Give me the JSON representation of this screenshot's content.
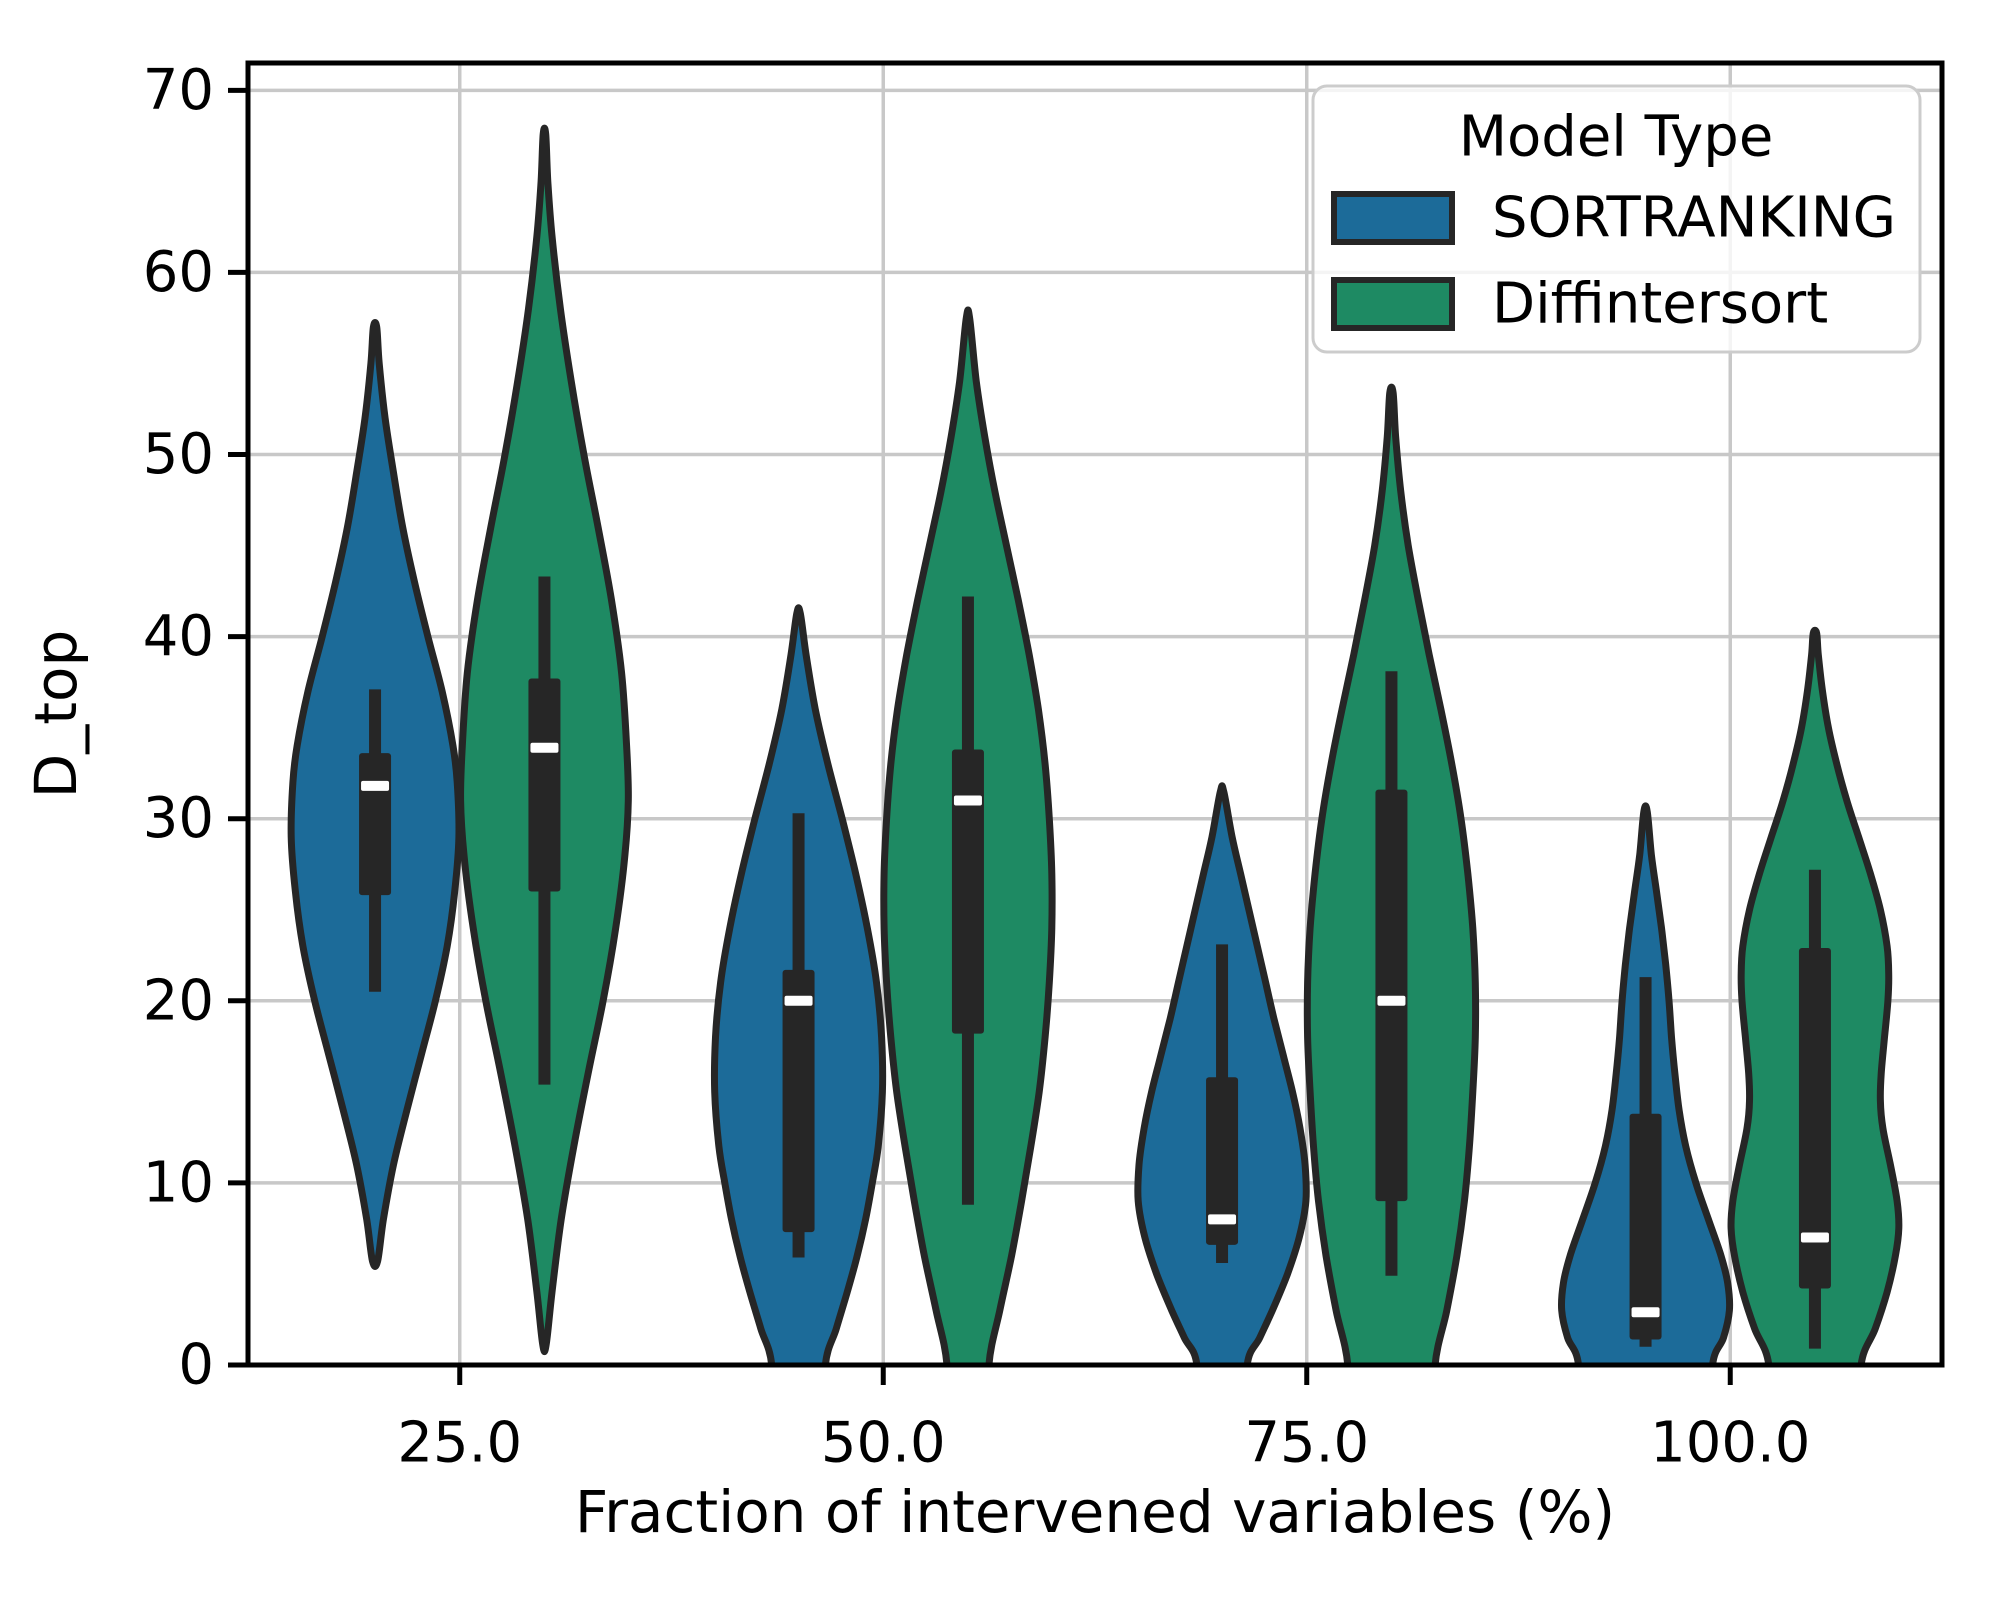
{
  "figure": {
    "background": "#ffffff"
  },
  "chart_data": {
    "type": "violin",
    "title": "",
    "xlabel": "Fraction of intervened variables (%)",
    "ylabel": "D_top",
    "categories": [
      "25.0",
      "50.0",
      "75.0",
      "100.0"
    ],
    "yticks": [
      0,
      10,
      20,
      30,
      40,
      50,
      60,
      70
    ],
    "ylim": [
      0,
      71.5
    ],
    "grid": true,
    "legend": {
      "title": "Model Type",
      "position": "upper right",
      "entries": [
        "SORTRANKING",
        "Diffintersort"
      ]
    },
    "style_colors": {
      "grid": "#c8c8c8",
      "spine": "#000000",
      "inner_dark": "#262626",
      "median": "#ffffff",
      "legend_border": "#cccccc",
      "text": "#000000"
    },
    "series": [
      {
        "name": "SORTRANKING",
        "color": "#1c6b99",
        "violins": [
          {
            "category": "25.0",
            "whisker_low": 20.5,
            "q1": 25.8,
            "median": 31.8,
            "q3": 33.6,
            "whisker_high": 37.1,
            "kde_min": 5.7,
            "kde_max": 57.0,
            "clipped_at_zero": false,
            "profile": [
              [
                5.7,
                0.03
              ],
              [
                8,
                0.1
              ],
              [
                11,
                0.22
              ],
              [
                14,
                0.38
              ],
              [
                17,
                0.55
              ],
              [
                20,
                0.72
              ],
              [
                23,
                0.86
              ],
              [
                26,
                0.95
              ],
              [
                29,
                1.0
              ],
              [
                32,
                0.98
              ],
              [
                34,
                0.93
              ],
              [
                37,
                0.8
              ],
              [
                40,
                0.63
              ],
              [
                43,
                0.47
              ],
              [
                46,
                0.33
              ],
              [
                49,
                0.22
              ],
              [
                52,
                0.12
              ],
              [
                55,
                0.05
              ],
              [
                57,
                0.02
              ]
            ]
          },
          {
            "category": "50.0",
            "whisker_low": 5.9,
            "q1": 7.3,
            "median": 20.0,
            "q3": 21.7,
            "whisker_high": 30.3,
            "kde_min": 0.0,
            "kde_max": 41.3,
            "clipped_at_zero": true,
            "profile": [
              [
                0,
                0.32
              ],
              [
                2,
                0.45
              ],
              [
                4,
                0.58
              ],
              [
                6,
                0.7
              ],
              [
                8,
                0.8
              ],
              [
                10,
                0.88
              ],
              [
                12,
                0.95
              ],
              [
                15,
                1.0
              ],
              [
                18,
                0.99
              ],
              [
                21,
                0.93
              ],
              [
                24,
                0.82
              ],
              [
                27,
                0.68
              ],
              [
                30,
                0.52
              ],
              [
                33,
                0.35
              ],
              [
                36,
                0.2
              ],
              [
                39,
                0.09
              ],
              [
                41.3,
                0.02
              ]
            ]
          },
          {
            "category": "75.0",
            "whisker_low": 5.6,
            "q1": 6.6,
            "median": 8.0,
            "q3": 15.8,
            "whisker_high": 23.1,
            "kde_min": 0.0,
            "kde_max": 31.5,
            "clipped_at_zero": true,
            "profile": [
              [
                0,
                0.3
              ],
              [
                1.5,
                0.45
              ],
              [
                3,
                0.6
              ],
              [
                5,
                0.78
              ],
              [
                7,
                0.92
              ],
              [
                9,
                1.0
              ],
              [
                11,
                0.99
              ],
              [
                13,
                0.93
              ],
              [
                15,
                0.84
              ],
              [
                17,
                0.73
              ],
              [
                19,
                0.62
              ],
              [
                21,
                0.52
              ],
              [
                23,
                0.42
              ],
              [
                25,
                0.32
              ],
              [
                27,
                0.22
              ],
              [
                29,
                0.12
              ],
              [
                31.5,
                0.02
              ]
            ]
          },
          {
            "category": "100.0",
            "whisker_low": 1.0,
            "q1": 1.4,
            "median": 2.9,
            "q3": 13.8,
            "whisker_high": 21.3,
            "kde_min": 0.0,
            "kde_max": 30.4,
            "clipped_at_zero": true,
            "profile": [
              [
                0,
                0.8
              ],
              [
                1.5,
                0.93
              ],
              [
                3,
                1.0
              ],
              [
                4.5,
                0.98
              ],
              [
                6,
                0.9
              ],
              [
                8,
                0.75
              ],
              [
                10,
                0.6
              ],
              [
                12,
                0.48
              ],
              [
                14,
                0.4
              ],
              [
                16,
                0.35
              ],
              [
                18,
                0.31
              ],
              [
                20,
                0.28
              ],
              [
                22,
                0.24
              ],
              [
                24,
                0.19
              ],
              [
                26,
                0.13
              ],
              [
                28,
                0.07
              ],
              [
                30.4,
                0.02
              ]
            ]
          }
        ]
      },
      {
        "name": "Diffintersort",
        "color": "#1e8a63",
        "violins": [
          {
            "category": "25.0",
            "whisker_low": 15.4,
            "q1": 26.0,
            "median": 33.9,
            "q3": 37.7,
            "whisker_high": 43.3,
            "kde_min": 1.1,
            "kde_max": 67.6,
            "clipped_at_zero": false,
            "profile": [
              [
                1.1,
                0.02
              ],
              [
                4,
                0.09
              ],
              [
                8,
                0.2
              ],
              [
                12,
                0.35
              ],
              [
                16,
                0.52
              ],
              [
                20,
                0.7
              ],
              [
                24,
                0.85
              ],
              [
                28,
                0.96
              ],
              [
                31,
                1.0
              ],
              [
                34,
                0.98
              ],
              [
                38,
                0.92
              ],
              [
                42,
                0.8
              ],
              [
                46,
                0.64
              ],
              [
                50,
                0.47
              ],
              [
                54,
                0.32
              ],
              [
                58,
                0.19
              ],
              [
                62,
                0.09
              ],
              [
                65,
                0.04
              ],
              [
                67.6,
                0.015
              ]
            ]
          },
          {
            "category": "50.0",
            "whisker_low": 8.8,
            "q1": 18.2,
            "median": 31.0,
            "q3": 33.8,
            "whisker_high": 42.2,
            "kde_min": 0.0,
            "kde_max": 57.5,
            "clipped_at_zero": true,
            "profile": [
              [
                0,
                0.25
              ],
              [
                3,
                0.38
              ],
              [
                6,
                0.52
              ],
              [
                9,
                0.64
              ],
              [
                12,
                0.75
              ],
              [
                15,
                0.85
              ],
              [
                18,
                0.92
              ],
              [
                21,
                0.97
              ],
              [
                24,
                1.0
              ],
              [
                27,
                1.0
              ],
              [
                30,
                0.97
              ],
              [
                33,
                0.92
              ],
              [
                36,
                0.84
              ],
              [
                39,
                0.73
              ],
              [
                42,
                0.6
              ],
              [
                45,
                0.46
              ],
              [
                48,
                0.32
              ],
              [
                51,
                0.2
              ],
              [
                54,
                0.1
              ],
              [
                57.5,
                0.02
              ]
            ]
          },
          {
            "category": "75.0",
            "whisker_low": 4.9,
            "q1": 9.0,
            "median": 20.0,
            "q3": 31.6,
            "whisker_high": 38.1,
            "kde_min": 0.0,
            "kde_max": 53.4,
            "clipped_at_zero": true,
            "profile": [
              [
                0,
                0.52
              ],
              [
                3,
                0.66
              ],
              [
                6,
                0.78
              ],
              [
                9,
                0.87
              ],
              [
                12,
                0.93
              ],
              [
                15,
                0.97
              ],
              [
                18,
                1.0
              ],
              [
                21,
                1.0
              ],
              [
                24,
                0.97
              ],
              [
                27,
                0.91
              ],
              [
                30,
                0.83
              ],
              [
                33,
                0.72
              ],
              [
                36,
                0.59
              ],
              [
                39,
                0.45
              ],
              [
                42,
                0.32
              ],
              [
                45,
                0.2
              ],
              [
                48,
                0.11
              ],
              [
                51,
                0.05
              ],
              [
                53.4,
                0.02
              ]
            ]
          },
          {
            "category": "100.0",
            "whisker_low": 0.9,
            "q1": 4.2,
            "median": 7.0,
            "q3": 22.9,
            "whisker_high": 27.2,
            "kde_min": 0.0,
            "kde_max": 40.2,
            "clipped_at_zero": true,
            "profile": [
              [
                0,
                0.55
              ],
              [
                2,
                0.72
              ],
              [
                4,
                0.86
              ],
              [
                6,
                0.96
              ],
              [
                7.5,
                1.0
              ],
              [
                9,
                0.98
              ],
              [
                11,
                0.9
              ],
              [
                13,
                0.81
              ],
              [
                14.5,
                0.78
              ],
              [
                16,
                0.79
              ],
              [
                18,
                0.83
              ],
              [
                20,
                0.87
              ],
              [
                21.5,
                0.88
              ],
              [
                23,
                0.86
              ],
              [
                25,
                0.78
              ],
              [
                27,
                0.66
              ],
              [
                29,
                0.52
              ],
              [
                31,
                0.38
              ],
              [
                33,
                0.26
              ],
              [
                35,
                0.16
              ],
              [
                37,
                0.09
              ],
              [
                39,
                0.04
              ],
              [
                40.2,
                0.02
              ]
            ]
          }
        ]
      }
    ]
  }
}
